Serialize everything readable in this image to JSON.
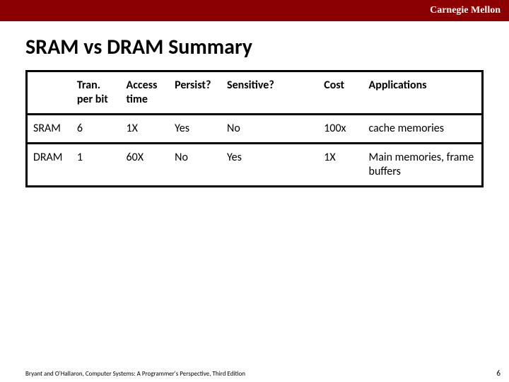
{
  "brand": "Carnegie Mellon",
  "title": "SRAM vs DRAM Summary",
  "columns": [
    "",
    "Tran. per bit",
    "Access time",
    "Persist?",
    "Sensitive?",
    "Cost",
    "Applications"
  ],
  "rows": [
    [
      "SRAM",
      "6",
      "1X",
      "Yes",
      "No",
      "100x",
      "cache memories"
    ],
    [
      "DRAM",
      "1",
      "60X",
      "No",
      "Yes",
      "1X",
      "Main memories, frame buffers"
    ]
  ],
  "footer_citation": "Bryant and O'Hallaron, Computer Systems: A Programmer's Perspective, Third Edition",
  "page_number": "6",
  "colors": {
    "header_bar": "#8b0000",
    "header_text": "#ffffff",
    "text": "#000000",
    "border": "#000000",
    "background": "#ffffff"
  }
}
